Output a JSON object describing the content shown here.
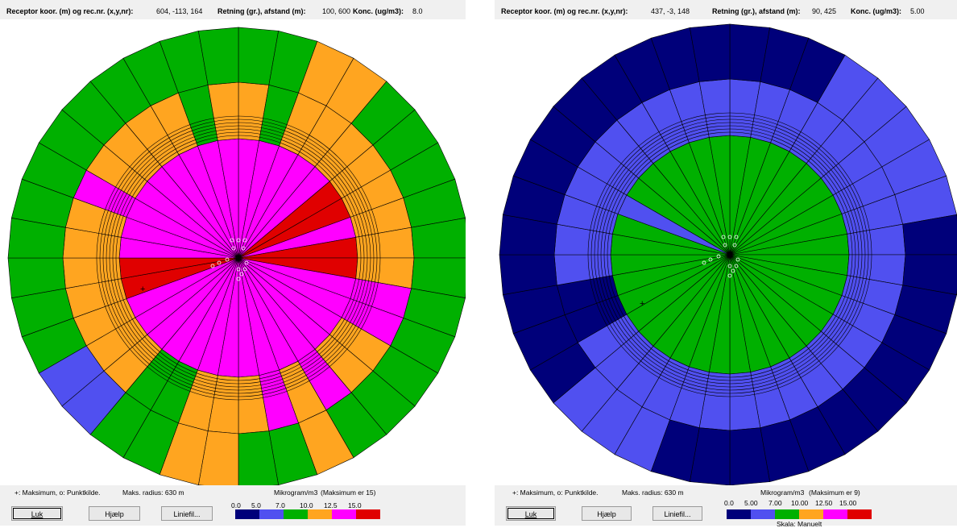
{
  "panels": [
    {
      "header": {
        "receptor_label": "Receptor koor. (m) og rec.nr. (x,y,nr):",
        "receptor_value": "604, -113, 164",
        "direction_label": "Retning (gr.), afstand (m):",
        "direction_value": "100, 600",
        "conc_label": "Konc. (ug/m3):",
        "conc_value": "8.0"
      },
      "legend_text": "+: Maksimum, o: Punktkilde.",
      "max_radius": "Maks. radius: 630 m",
      "unit_label": "Mikrogram/m3",
      "max_text": "(Maksimum er  15)",
      "scale_ticks": [
        "0.0",
        "5.0",
        "7.0",
        "10.0",
        "12.5",
        "15.0"
      ],
      "scale_caption": "",
      "buttons": {
        "close": "Luk",
        "help": "Hjælp",
        "linefile": "Liniefil..."
      },
      "plot": {
        "scheme": "warm",
        "ring_colors": [
          "#ff00ff",
          "#ffa520",
          "#00b000"
        ],
        "wedge_overrides": [
          {
            "sector": 5,
            "ring": 0,
            "color": "#e00000"
          },
          {
            "sector": 6,
            "ring": 0,
            "color": "#e00000"
          },
          {
            "sector": 8,
            "ring": 0,
            "color": "#e00000"
          },
          {
            "sector": 9,
            "ring": 0,
            "color": "#e00000"
          },
          {
            "sector": 25,
            "ring": 0,
            "color": "#e00000"
          },
          {
            "sector": 26,
            "ring": 0,
            "color": "#e00000"
          },
          {
            "sector": 10,
            "ring": 1,
            "color": "#ff00ff"
          },
          {
            "sector": 11,
            "ring": 1,
            "color": "#ff00ff"
          },
          {
            "sector": 14,
            "ring": 1,
            "color": "#ff00ff"
          },
          {
            "sector": 16,
            "ring": 1,
            "color": "#ff00ff"
          },
          {
            "sector": 29,
            "ring": 1,
            "color": "#ff00ff"
          },
          {
            "sector": 1,
            "ring": 1,
            "color": "#00b000"
          },
          {
            "sector": 34,
            "ring": 1,
            "color": "#00b000"
          },
          {
            "sector": 20,
            "ring": 1,
            "color": "#00b000"
          },
          {
            "sector": 21,
            "ring": 1,
            "color": "#00b000"
          },
          {
            "sector": 18,
            "ring": 2,
            "color": "#ffa520"
          },
          {
            "sector": 19,
            "ring": 2,
            "color": "#ffa520"
          },
          {
            "sector": 15,
            "ring": 2,
            "color": "#ffa520"
          },
          {
            "sector": 2,
            "ring": 2,
            "color": "#ffa520"
          },
          {
            "sector": 3,
            "ring": 2,
            "color": "#ffa520"
          },
          {
            "sector": 22,
            "ring": 2,
            "color": "#5050f0"
          },
          {
            "sector": 23,
            "ring": 2,
            "color": "#5050f0"
          }
        ]
      }
    },
    {
      "header": {
        "receptor_label": "Receptor koor. (m) og rec.nr. (x,y,nr):",
        "receptor_value": "437, -3, 148",
        "direction_label": "Retning (gr.), afstand (m):",
        "direction_value": "90, 425",
        "conc_label": "Konc. (ug/m3):",
        "conc_value": "5.00"
      },
      "legend_text": "+: Maksimum, o: Punktkilde.",
      "max_radius": "Maks. radius: 630 m",
      "unit_label": "Mikrogram/m3",
      "max_text": "(Maksimum er  9)",
      "scale_ticks": [
        "0.0",
        "5.00",
        "7.00",
        "10.00",
        "12.50",
        "15.00"
      ],
      "scale_caption": "Skala: Manuelt",
      "buttons": {
        "close": "Luk",
        "help": "Hjælp",
        "linefile": "Liniefil..."
      },
      "plot": {
        "scheme": "cool",
        "ring_colors": [
          "#00b000",
          "#5050f0",
          "#00007a"
        ],
        "wedge_overrides": [
          {
            "sector": 24,
            "ring": 1,
            "color": "#00007a"
          },
          {
            "sector": 25,
            "ring": 1,
            "color": "#00007a"
          },
          {
            "sector": 3,
            "ring": 2,
            "color": "#5050f0"
          },
          {
            "sector": 4,
            "ring": 2,
            "color": "#5050f0"
          },
          {
            "sector": 5,
            "ring": 2,
            "color": "#5050f0"
          },
          {
            "sector": 6,
            "ring": 2,
            "color": "#5050f0"
          },
          {
            "sector": 7,
            "ring": 2,
            "color": "#5050f0"
          },
          {
            "sector": 20,
            "ring": 2,
            "color": "#5050f0"
          },
          {
            "sector": 21,
            "ring": 2,
            "color": "#5050f0"
          },
          {
            "sector": 22,
            "ring": 2,
            "color": "#5050f0"
          },
          {
            "sector": 29,
            "ring": 0,
            "color": "#5050f0"
          }
        ]
      }
    }
  ],
  "scale_colors": [
    "#00007a",
    "#5050f0",
    "#00b000",
    "#ffa520",
    "#ff00ff",
    "#e00000"
  ]
}
